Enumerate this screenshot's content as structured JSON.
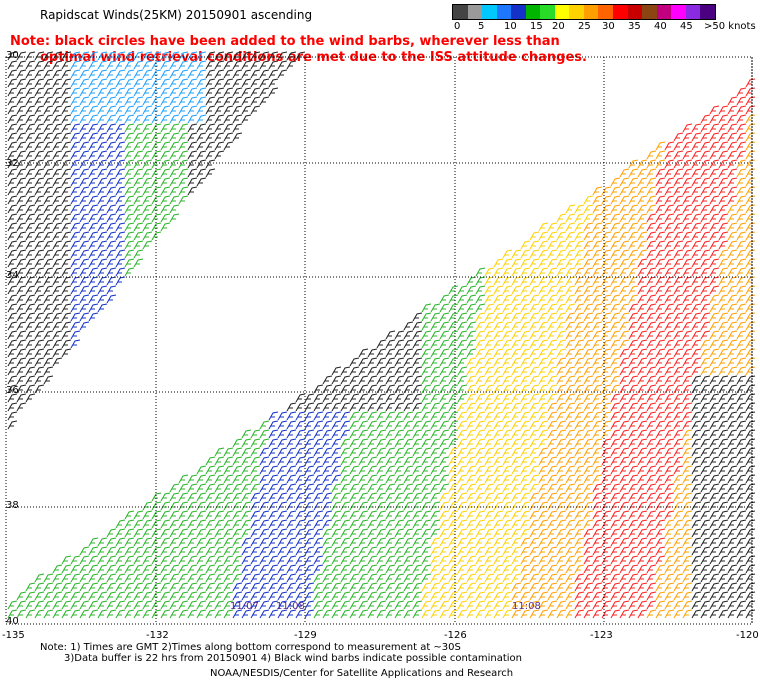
{
  "title": "Rapidscat Winds(25KM) 20150901 ascending",
  "note": {
    "line1": "Note: black circles have been added to the wind barbs, wherever less than",
    "line2": "optimal wind retrieval conditions are met due to the ISS attitude changes."
  },
  "legend": {
    "labels": [
      "0",
      "5",
      "10",
      "15",
      "20",
      "25",
      "30",
      "35",
      "40",
      "45",
      ">50 knots"
    ],
    "colors": [
      "#444444",
      "#9a9a9a",
      "#00c8ff",
      "#1e78ff",
      "#1432c8",
      "#00b400",
      "#28dc28",
      "#ffff00",
      "#ffd200",
      "#ffa000",
      "#ff6400",
      "#ff0000",
      "#c80000",
      "#8b4513",
      "#c0007f",
      "#ff00ff",
      "#8a2be2",
      "#4b0082"
    ]
  },
  "axes": {
    "y_labels": [
      "30",
      "32",
      "34",
      "36",
      "38",
      "40"
    ],
    "x_labels": [
      "-135",
      "-132",
      "-129",
      "-126",
      "-123",
      "-120"
    ]
  },
  "time_labels": [
    "11:07",
    "11:08",
    "11:08"
  ],
  "footer": {
    "line1": "Note: 1) Times are GMT 2)Times along bottom correspond to measurement at ~30S",
    "line2": "3)Data buffer is 22 hrs from 20150901 4) Black wind barbs indicate possible contamination",
    "line3": "NOAA/NESDIS/Center for Satellite Applications and Research"
  }
}
